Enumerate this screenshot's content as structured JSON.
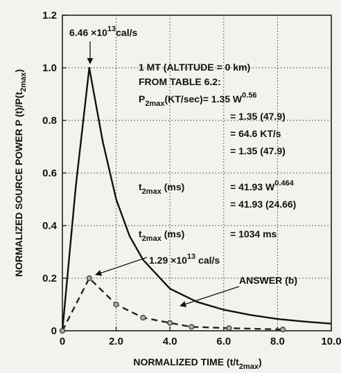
{
  "chart_data": {
    "type": "line",
    "x_label": [
      {
        "text": "NORMALIZED TIME (t/t"
      },
      {
        "sub": "2max"
      },
      {
        "text": ")"
      }
    ],
    "y_label": [
      {
        "text": "NORMALIZED SOURCE POWER P (t)/P(t"
      },
      {
        "sub": "2max"
      },
      {
        "text": ")"
      }
    ],
    "xlim": [
      0,
      10
    ],
    "ylim": [
      0,
      1.2
    ],
    "xticks": [
      0,
      {
        "value": 2,
        "label": "2.0"
      },
      {
        "value": 4,
        "label": "4.0"
      },
      {
        "value": 6,
        "label": "6.0"
      },
      {
        "value": 8,
        "label": "8.0"
      },
      {
        "value": 10,
        "label": "10.0"
      }
    ],
    "yticks": [
      0,
      0.2,
      0.4,
      0.6,
      0.8,
      {
        "value": 1,
        "label": "1.0"
      },
      1.2
    ],
    "grid": true,
    "series": [
      {
        "color": "#111111",
        "dash": false,
        "markers": false,
        "x": [
          0,
          0.5,
          1,
          1.5,
          2,
          2.5,
          3,
          4,
          5,
          6,
          7,
          8,
          9,
          10
        ],
        "values": [
          0,
          0.55,
          1.0,
          0.72,
          0.5,
          0.36,
          0.27,
          0.16,
          0.11,
          0.08,
          0.06,
          0.045,
          0.035,
          0.027
        ]
      },
      {
        "color": "#222222",
        "dash": true,
        "markers": true,
        "x": [
          0,
          1,
          2,
          3,
          4,
          4.8,
          6.2,
          8.2
        ],
        "values": [
          0,
          0.2,
          0.1,
          0.05,
          0.03,
          0.015,
          0.01,
          0.005
        ]
      }
    ],
    "annotations": [
      [
        {
          "text": "6.46 ×10"
        },
        {
          "sup": "13"
        },
        {
          "text": "cal/s"
        }
      ],
      [
        {
          "text": "1 MT (ALTITUDE = 0 km)"
        }
      ],
      [
        {
          "text": "FROM TABLE 6.2:"
        }
      ],
      [
        {
          "text": "P"
        },
        {
          "sub": "2max"
        },
        {
          "text": "(KT/sec)= 1.35 W"
        },
        {
          "sup": "0.56"
        }
      ],
      [
        {
          "text": "= 1.35 (47.9)"
        }
      ],
      [
        {
          "text": "= 64.6 KT/s"
        }
      ],
      [
        {
          "text": "= 1.35 (47.9)"
        }
      ],
      [
        {
          "text": "t"
        },
        {
          "sub": "2max"
        },
        {
          "text": " (ms)"
        }
      ],
      [
        {
          "text": "= 41.93 W"
        },
        {
          "sup": "0.464"
        }
      ],
      [
        {
          "text": "= 41.93 (24.66)"
        }
      ],
      [
        {
          "text": "t"
        },
        {
          "sub": "2max"
        },
        {
          "text": " (ms)"
        }
      ],
      [
        {
          "text": "= 1034 ms"
        }
      ],
      [
        {
          "text": "1.29 ×10"
        },
        {
          "sup": "13"
        },
        {
          "text": " cal/s"
        }
      ],
      [
        {
          "text": "ANSWER (b)"
        }
      ]
    ]
  }
}
